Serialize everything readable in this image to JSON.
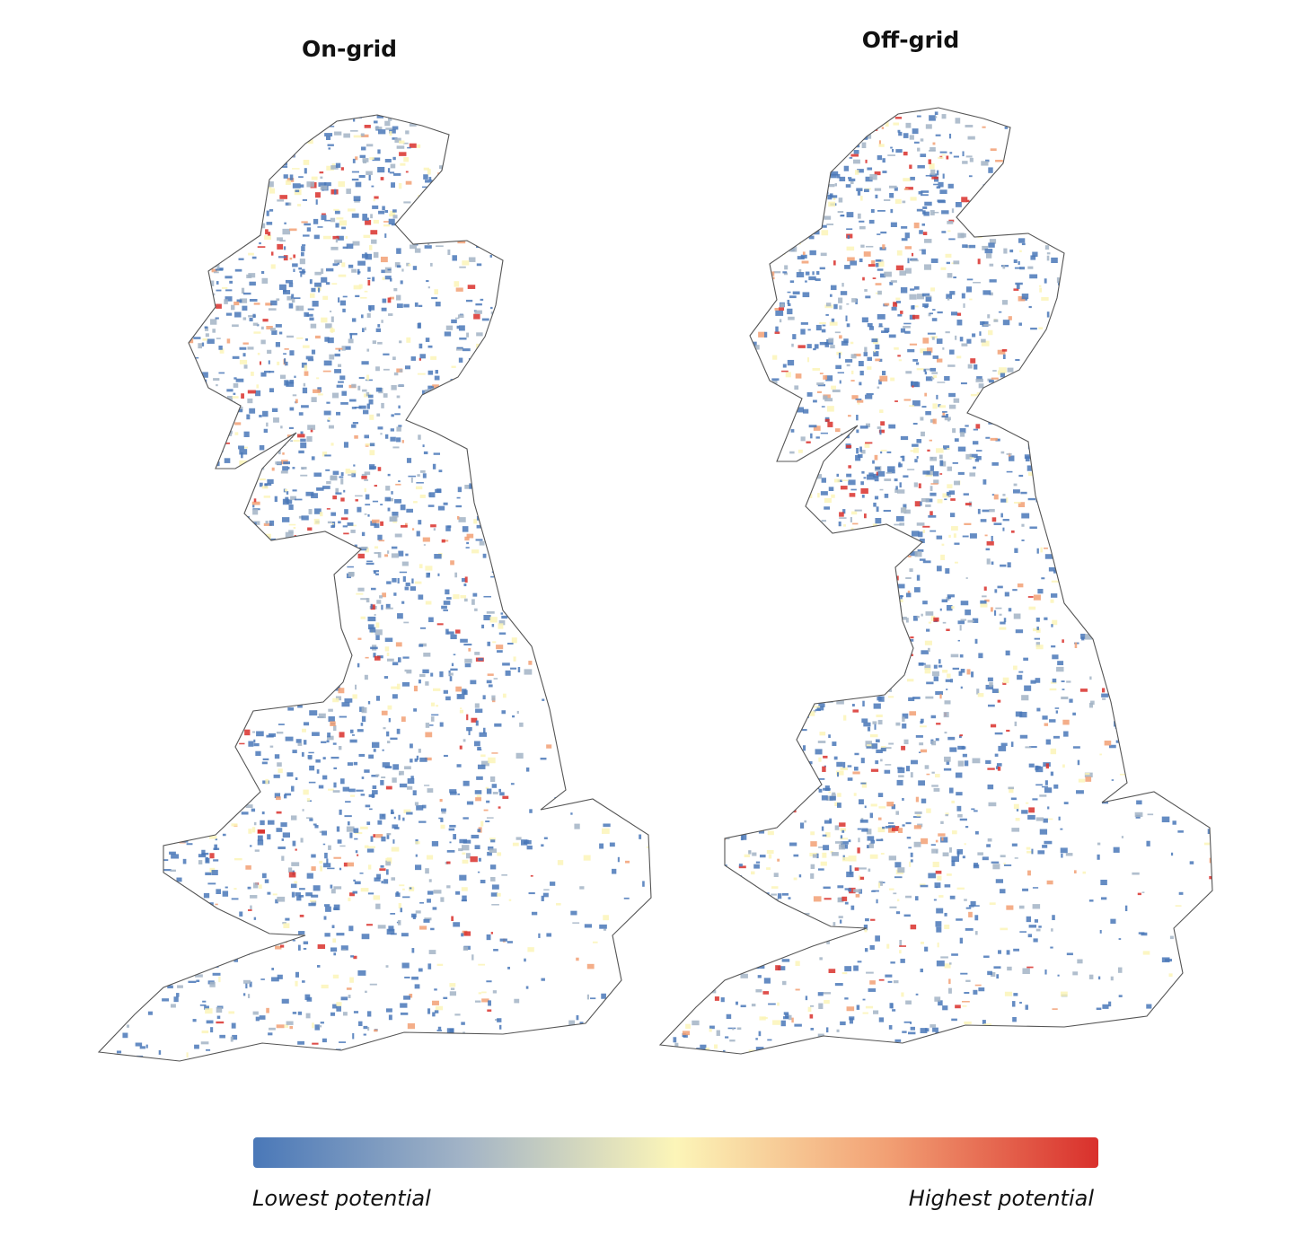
{
  "maps": [
    {
      "title": "On-grid"
    },
    {
      "title": "Off-grid"
    }
  ],
  "legend": {
    "low_label": "Lowest potential",
    "high_label": "Highest potential",
    "colors": [
      "#4a78b8",
      "#a3b4c6",
      "#fcf5b8",
      "#f2a074",
      "#d9302c"
    ]
  }
}
